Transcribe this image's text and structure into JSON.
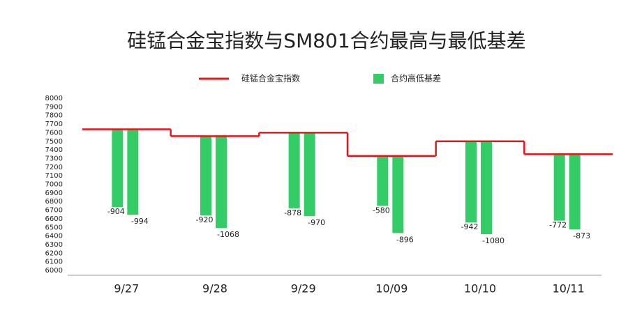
{
  "chart_data": {
    "type": "step-bar",
    "title": "硅锰合金宝指数与SM801合约最高与最低基差",
    "categories": [
      "9/27",
      "9/28",
      "9/29",
      "10/09",
      "10/10",
      "10/11"
    ],
    "series": [
      {
        "name": "硅锰合金宝指数",
        "color": "#e8141b",
        "values": [
          7640,
          7560,
          7600,
          7330,
          7500,
          7350
        ]
      },
      {
        "name": "合约高低基差",
        "color": "#33cc66",
        "values": [
          -904,
          -920,
          -878,
          -580,
          -942,
          -772
        ]
      },
      {
        "color": "#33cc66",
        "values": [
          -994,
          -1068,
          -970,
          -896,
          -1080,
          -873
        ]
      }
    ],
    "ylim": [
      6000,
      8000
    ],
    "yticks": [
      6000,
      6100,
      6200,
      6300,
      6400,
      6500,
      6600,
      6700,
      6800,
      6900,
      7000,
      7100,
      7200,
      7300,
      7400,
      7500,
      7600,
      7700,
      7800,
      7900,
      8000
    ],
    "grid": false
  }
}
